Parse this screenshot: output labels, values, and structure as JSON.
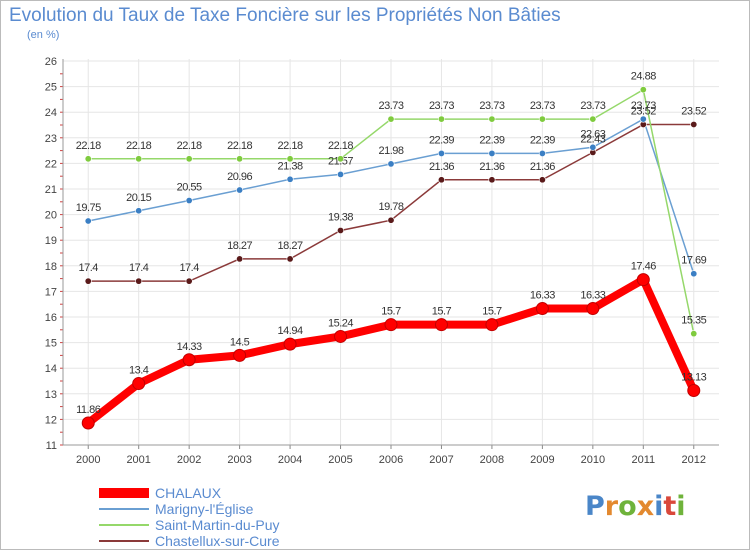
{
  "title": "Evolution du Taux de Taxe Foncière sur les Propriétés Non Bâties",
  "unit_label": "(en %)",
  "logo": {
    "letters": [
      "P",
      "r",
      "o",
      "x",
      "i",
      "t",
      "i"
    ],
    "colors": [
      "#4a86c8",
      "#e3892f",
      "#6fb33b",
      "#e3892f",
      "#4a86c8",
      "#d9483b",
      "#6fb33b"
    ]
  },
  "chart_data": {
    "type": "line",
    "title": "Evolution du Taux de Taxe Foncière sur les Propriétés Non Bâties",
    "ylabel": "(en %)",
    "xlabel": "",
    "x": [
      "2000",
      "2001",
      "2002",
      "2003",
      "2004",
      "2005",
      "2006",
      "2007",
      "2008",
      "2009",
      "2010",
      "2011",
      "2012"
    ],
    "yticks": [
      "11",
      "12",
      "13",
      "14",
      "15",
      "16",
      "17",
      "18",
      "19",
      "20",
      "21",
      "22",
      "23",
      "24",
      "25",
      "26"
    ],
    "ylim": [
      11,
      26
    ],
    "grid": true,
    "series": [
      {
        "name": "CHALAUX",
        "color": "#ff0000",
        "emphasis": true,
        "values": [
          11.86,
          13.4,
          14.33,
          14.5,
          14.94,
          15.24,
          15.7,
          15.7,
          15.7,
          16.33,
          16.33,
          17.46,
          13.13
        ],
        "labels": [
          "11.86",
          "13.4",
          "14.33",
          "14.5",
          "14.94",
          "15.24",
          "15.7",
          "15.7",
          "15.7",
          "16.33",
          "16.33",
          "17.46",
          "13.13"
        ]
      },
      {
        "name": "Marigny-l'Église",
        "color": "#6a9fd2",
        "marker": "#3b7fc4",
        "values": [
          19.75,
          20.15,
          20.55,
          20.96,
          21.38,
          21.57,
          21.98,
          22.39,
          22.39,
          22.39,
          22.63,
          23.73,
          17.69
        ],
        "labels": [
          "19.75",
          "20.15",
          "20.55",
          "20.96",
          "21.38",
          "21.57",
          "21.98",
          "22.39",
          "22.39",
          "22.39",
          "22.63",
          "23.73",
          "17.69"
        ]
      },
      {
        "name": "Saint-Martin-du-Puy",
        "color": "#95d86a",
        "marker": "#7fcb3e",
        "values": [
          22.18,
          22.18,
          22.18,
          22.18,
          22.18,
          22.18,
          23.73,
          23.73,
          23.73,
          23.73,
          23.73,
          24.88,
          15.35
        ],
        "labels": [
          "22.18",
          "22.18",
          "22.18",
          "22.18",
          "22.18",
          "22.18",
          "23.73",
          "23.73",
          "23.73",
          "23.73",
          "23.73",
          "24.88",
          "15.35"
        ]
      },
      {
        "name": "Chastellux-sur-Cure",
        "color": "#8b3a3a",
        "marker": "#5a1a1a",
        "values": [
          17.4,
          17.4,
          17.4,
          18.27,
          18.27,
          19.38,
          19.78,
          21.36,
          21.36,
          21.36,
          22.43,
          23.52,
          23.52
        ],
        "labels": [
          "17.4",
          "17.4",
          "17.4",
          "18.27",
          "18.27",
          "19.38",
          "19.78",
          "21.36",
          "21.36",
          "21.36",
          "22.43",
          "23.52",
          "23.52"
        ]
      }
    ]
  }
}
